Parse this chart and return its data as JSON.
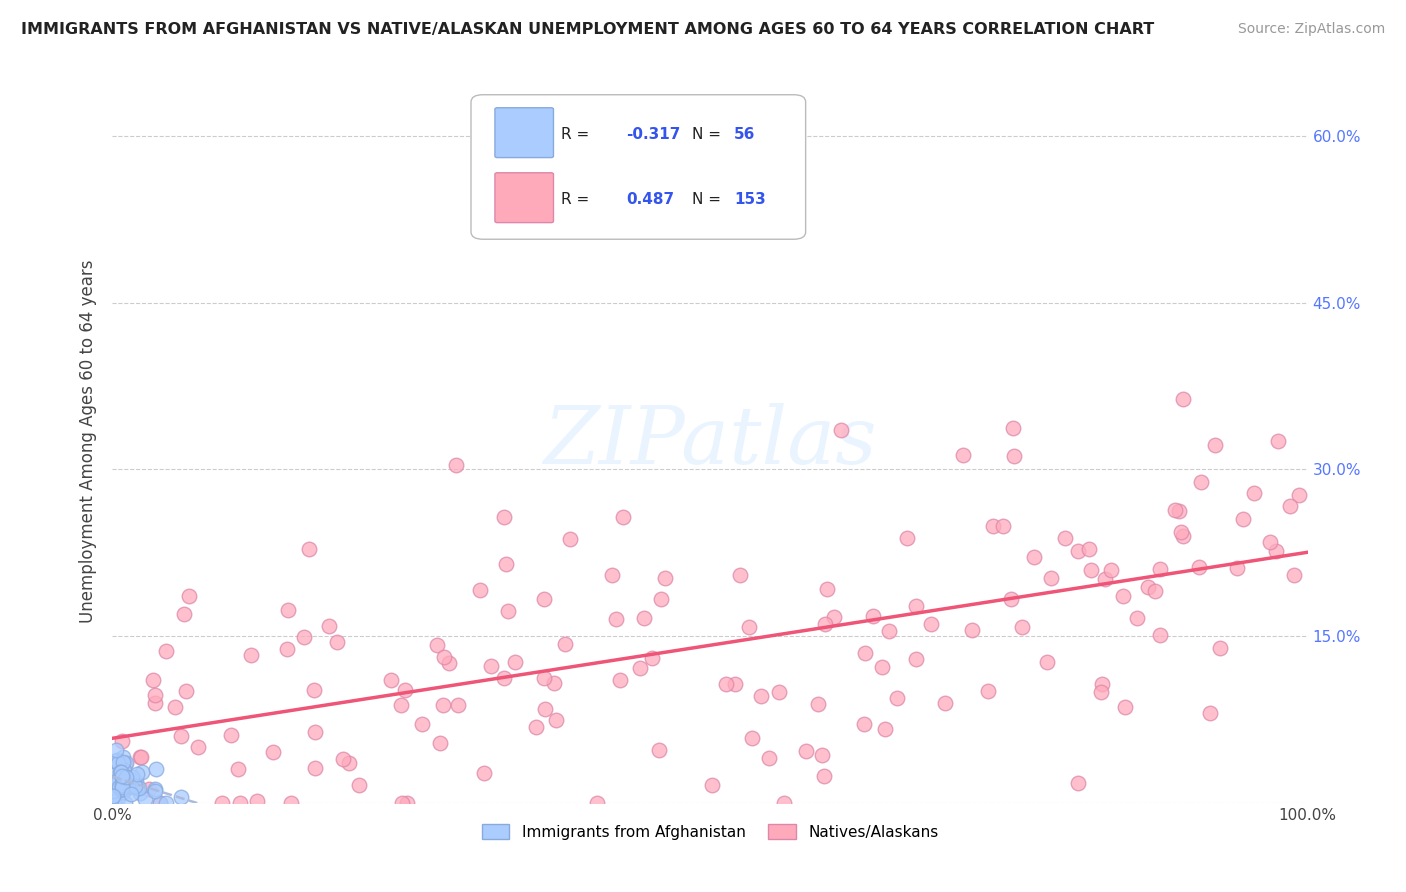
{
  "title": "IMMIGRANTS FROM AFGHANISTAN VS NATIVE/ALASKAN UNEMPLOYMENT AMONG AGES 60 TO 64 YEARS CORRELATION CHART",
  "source": "Source: ZipAtlas.com",
  "ylabel": "Unemployment Among Ages 60 to 64 years",
  "xlim": [
    0.0,
    1.0
  ],
  "ylim": [
    0.0,
    0.65
  ],
  "yticks": [
    0.0,
    0.15,
    0.3,
    0.45,
    0.6
  ],
  "yticklabels": [
    "",
    "15.0%",
    "30.0%",
    "45.0%",
    "60.0%"
  ],
  "legend_labels": [
    "Immigrants from Afghanistan",
    "Natives/Alaskans"
  ],
  "R_afghan": -0.317,
  "N_afghan": 56,
  "R_native": 0.487,
  "N_native": 153,
  "color_afghan": "#aaccff",
  "color_native": "#ffaabb",
  "edge_afghan": "#88aadd",
  "edge_native": "#dd88aa",
  "trendline_afghan_color": "#aabbdd",
  "trendline_native_color": "#ee5577",
  "watermark": "ZIPatlas",
  "background_color": "#ffffff",
  "grid_color": "#cccccc",
  "tick_color_right": "#5577ff",
  "legend_R_color": "#3355ee",
  "title_color": "#222222",
  "source_color": "#999999"
}
